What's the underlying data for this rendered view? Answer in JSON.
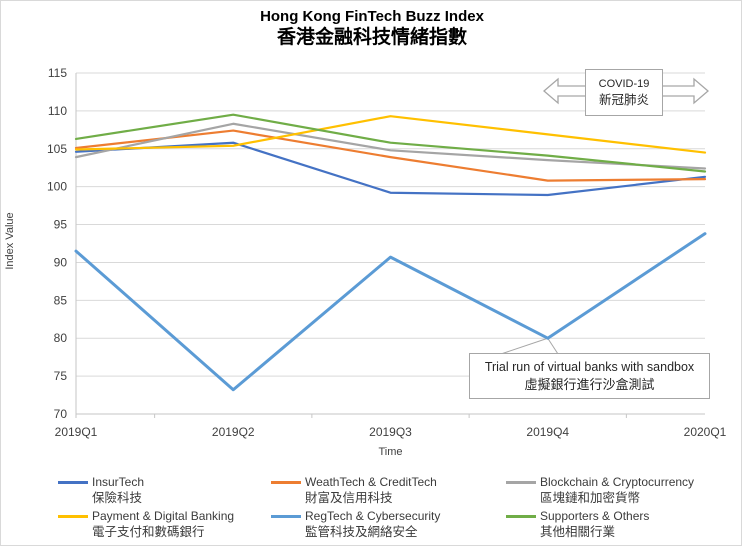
{
  "chart_data": {
    "type": "line",
    "title": "Hong Kong FinTech Buzz Index",
    "title_zh": "香港金融科技情緒指數",
    "xlabel": "Time",
    "ylabel": "Index Value",
    "ylim": [
      70,
      115
    ],
    "yticks": [
      70,
      75,
      80,
      85,
      90,
      95,
      100,
      105,
      110,
      115
    ],
    "grid": true,
    "legend_position": "bottom",
    "categories": [
      "2019Q1",
      "2019Q2",
      "2019Q3",
      "2019Q4",
      "2020Q1"
    ],
    "series": [
      {
        "name": "InsurTech",
        "name_zh": "保險科技",
        "color": "#4472C4",
        "width": 2.2,
        "values": [
          104.6,
          105.8,
          99.2,
          98.9,
          101.3
        ]
      },
      {
        "name": "WeathTech & CreditTech",
        "name_zh": "財富及信用科技",
        "color": "#ED7D31",
        "width": 2.2,
        "values": [
          105.1,
          107.4,
          103.9,
          100.8,
          101.0
        ]
      },
      {
        "name": "Blockchain & Cryptocurrency",
        "name_zh": "區塊鏈和加密貨幣",
        "color": "#A5A5A5",
        "width": 2.2,
        "values": [
          103.9,
          108.3,
          104.8,
          103.5,
          102.4
        ]
      },
      {
        "name": "Payment & Digital Banking",
        "name_zh": "電子支付和數碼銀行",
        "color": "#FFC000",
        "width": 2.2,
        "values": [
          104.9,
          105.4,
          109.3,
          106.9,
          104.5
        ]
      },
      {
        "name": "RegTech & Cybersecurity",
        "name_zh": "監管科技及網絡安全",
        "color": "#5B9BD5",
        "width": 3,
        "values": [
          91.5,
          73.2,
          90.7,
          80.0,
          93.8
        ]
      },
      {
        "name": "Supporters & Others",
        "name_zh": "其他相關行業",
        "color": "#70AD47",
        "width": 2.2,
        "values": [
          106.3,
          109.5,
          105.8,
          104.1,
          102.0
        ]
      }
    ],
    "annotations": [
      {
        "id": "covid",
        "line1": "COVID-19",
        "line2": "新冠肺炎"
      },
      {
        "id": "sandbox",
        "line1": "Trial run of virtual banks with sandbox",
        "line2": "虛擬銀行進行沙盒測試",
        "target_series": "RegTech & Cybersecurity",
        "target_category": "2019Q4",
        "target_value": 80.0
      }
    ],
    "colors": {
      "gridline": "#d9d9d9",
      "axis_line": "#c6c6c6",
      "tick_label": "#404040",
      "annotation_border": "#a6a6a6"
    }
  }
}
